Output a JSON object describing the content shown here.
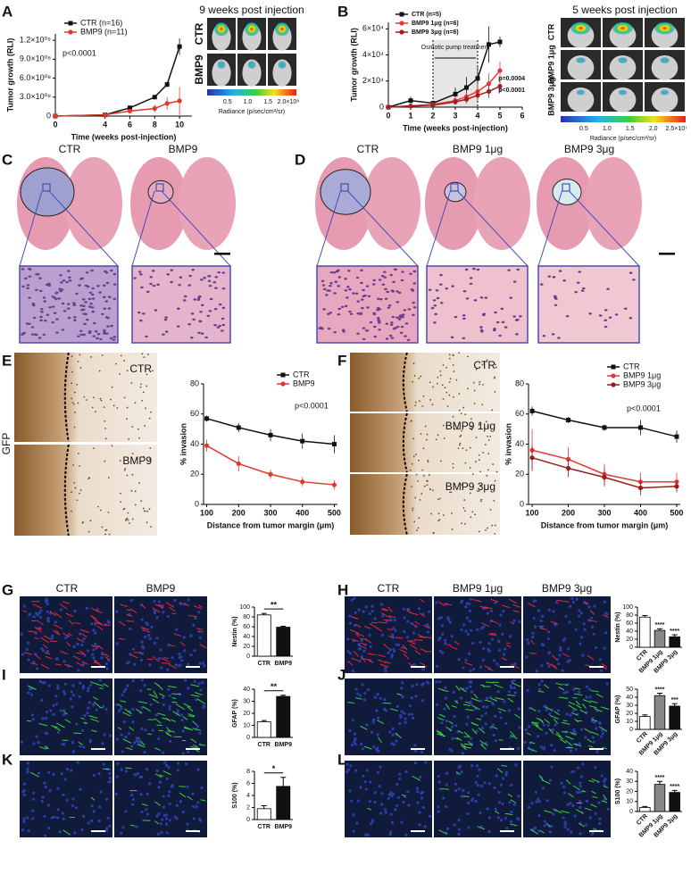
{
  "panel_letters": [
    "A",
    "B",
    "C",
    "D",
    "E",
    "F",
    "G",
    "H",
    "I",
    "J",
    "K",
    "L"
  ],
  "image_labels": {
    "a_title": "9 weeks post injection",
    "a_rows": [
      "CTR",
      "BMP9"
    ],
    "a_colorbar_ticks": [
      "0.5",
      "1.0",
      "1.5",
      "2.0×10⁸"
    ],
    "a_colorbar_label": "Radiance (p/sec/cm²/sr)",
    "b_title": "5 weeks post injection",
    "b_rows": [
      "CTR",
      "BMP9 1μg",
      "BMP9 3μg"
    ],
    "b_colorbar_ticks": [
      "0.5",
      "1.0",
      "1.5",
      "2.0",
      "2.5×10⁷"
    ],
    "b_colorbar_label": "Radiance (p/sec/cm²/sr)",
    "c_cols": [
      "CTR",
      "BMP9"
    ],
    "d_cols": [
      "CTR",
      "BMP9 1μg",
      "BMP9 3μg"
    ],
    "e_rows": [
      "CTR",
      "BMP9"
    ],
    "e_stain": "GFP",
    "f_rows": [
      "CTR",
      "BMP9 1μg",
      "BMP9 3μg"
    ],
    "g_cols": [
      "CTR",
      "BMP9"
    ],
    "h_cols": [
      "CTR",
      "BMP9 1μg",
      "BMP9 3μg"
    ],
    "stains": [
      "Nestin",
      "GFAP",
      "S100"
    ]
  },
  "chart_data": [
    {
      "type": "line",
      "xlabel": "Time (weeks post-injection)",
      "ylabel": "Tumor growth (RLI)",
      "x": [
        0,
        4,
        6,
        8,
        9,
        10
      ],
      "xlim": [
        0,
        11
      ],
      "xticks": [
        0,
        4,
        6,
        8,
        10
      ],
      "ylim": [
        0,
        1300000000
      ],
      "yticks": [
        0,
        {
          "value": 300000000,
          "label": "3.0×10⁰⁸"
        },
        {
          "value": 600000000,
          "label": "6.0×10⁰⁸"
        },
        {
          "value": 900000000,
          "label": "9.0×10⁰⁸"
        },
        {
          "value": 1200000000,
          "label": "1.2×10⁰⁹"
        }
      ],
      "series": [
        {
          "name": "CTR (n=16)",
          "color": "#111111",
          "values": [
            0,
            20000000,
            130000000,
            300000000,
            500000000,
            1100000000
          ],
          "errors": [
            0,
            10000000,
            15000000,
            30000000,
            40000000,
            130000000
          ]
        },
        {
          "name": "BMP9 (n=11)",
          "color": "#e0392b",
          "values": [
            0,
            20000000,
            80000000,
            120000000,
            200000000,
            240000000
          ],
          "errors": [
            0,
            10000000,
            30000000,
            60000000,
            100000000,
            220000000
          ]
        }
      ],
      "legend": "upper left",
      "annotations": [
        "p<0.0001"
      ]
    },
    {
      "type": "line",
      "xlabel": "Time (weeks post-injection)",
      "ylabel": "Tumor growth (RLI)",
      "x": [
        0,
        1,
        2,
        3,
        3.5,
        4,
        4.5,
        5
      ],
      "xlim": [
        0,
        6
      ],
      "xticks": [
        0,
        1,
        2,
        3,
        4,
        5,
        6
      ],
      "ylim": [
        0,
        65000
      ],
      "yticks": [
        0,
        {
          "value": 20000,
          "label": "2×10⁴"
        },
        {
          "value": 40000,
          "label": "4×10⁴"
        },
        {
          "value": 60000,
          "label": "6×10⁴"
        }
      ],
      "series": [
        {
          "name": "CTR (n=5)",
          "color": "#111111",
          "values": [
            0,
            5000,
            3000,
            10000,
            15000,
            22000,
            48000,
            50000
          ],
          "errors": [
            0,
            3000,
            2000,
            5000,
            8000,
            10000,
            14000,
            4000
          ]
        },
        {
          "name": "BMP9 1μg (n=6)",
          "color": "#e53935",
          "values": [
            0,
            1000,
            2000,
            5000,
            8000,
            12000,
            18000,
            28000
          ],
          "errors": [
            0,
            500,
            1000,
            3000,
            4000,
            6000,
            8000,
            7000
          ]
        },
        {
          "name": "BMP9 3μg (n=6)",
          "color": "#a51c1c",
          "values": [
            0,
            800,
            1500,
            4000,
            6000,
            9000,
            12000,
            16000
          ],
          "errors": [
            0,
            500,
            800,
            2000,
            3000,
            4000,
            5000,
            4000
          ]
        }
      ],
      "legend": "upper left",
      "treatment_span": [
        2,
        4
      ],
      "treatment_label": "Osmotic pump treatment",
      "annotations": [
        "p=0.0004",
        "p<0.0001"
      ]
    },
    {
      "type": "line",
      "xlabel": "Distance from tumor margin (μm)",
      "ylabel": "% invasion",
      "x": [
        100,
        200,
        300,
        400,
        500
      ],
      "xlim": [
        90,
        510
      ],
      "xticks": [
        100,
        200,
        300,
        400,
        500
      ],
      "ylim": [
        0,
        80
      ],
      "yticks": [
        0,
        20,
        40,
        60,
        80
      ],
      "series": [
        {
          "name": "CTR",
          "color": "#111111",
          "values": [
            57,
            51,
            46,
            42,
            40
          ],
          "errors": [
            2,
            3,
            4,
            5,
            6
          ]
        },
        {
          "name": "BMP9",
          "color": "#e0392b",
          "values": [
            39,
            27,
            20,
            15,
            13
          ],
          "errors": [
            4,
            5,
            3,
            3,
            3
          ]
        }
      ],
      "legend": "upper right",
      "annotations": [
        "p<0.0001"
      ]
    },
    {
      "type": "line",
      "xlabel": "Distance from tumor margin (μm)",
      "ylabel": "% invasion",
      "x": [
        100,
        200,
        300,
        400,
        500
      ],
      "xlim": [
        90,
        510
      ],
      "xticks": [
        100,
        200,
        300,
        400,
        500
      ],
      "ylim": [
        0,
        80
      ],
      "yticks": [
        0,
        20,
        40,
        60,
        80
      ],
      "series": [
        {
          "name": "CTR",
          "color": "#111111",
          "values": [
            62,
            56,
            51,
            51,
            45
          ],
          "errors": [
            3,
            2,
            2,
            5,
            4
          ]
        },
        {
          "name": "BMP9 1μg",
          "color": "#e53935",
          "values": [
            36,
            30,
            20,
            15,
            15
          ],
          "errors": [
            14,
            8,
            7,
            6,
            6
          ]
        },
        {
          "name": "BMP9 3μg",
          "color": "#9b1b1b",
          "values": [
            31,
            24,
            18,
            11,
            12
          ],
          "errors": [
            8,
            6,
            6,
            5,
            4
          ]
        }
      ],
      "legend": "upper right",
      "annotations": [
        "p<0.0001"
      ]
    },
    {
      "type": "bar",
      "ylabel": "Nestin (%)",
      "categories": [
        "CTR",
        "BMP9"
      ],
      "values": [
        84,
        59
      ],
      "errors": [
        3,
        2
      ],
      "colors": [
        "#ffffff",
        "#111111"
      ],
      "ylim": [
        0,
        100
      ],
      "yticks": [
        0,
        20,
        40,
        60,
        80,
        100
      ],
      "significance": [
        "**"
      ]
    },
    {
      "type": "bar",
      "ylabel": "GFAP (%)",
      "categories": [
        "CTR",
        "BMP9"
      ],
      "values": [
        13,
        34
      ],
      "errors": [
        1,
        1
      ],
      "colors": [
        "#ffffff",
        "#111111"
      ],
      "ylim": [
        0,
        40
      ],
      "yticks": [
        0,
        10,
        20,
        30,
        40
      ],
      "significance": [
        "**"
      ]
    },
    {
      "type": "bar",
      "ylabel": "S100 (%)",
      "categories": [
        "CTR",
        "BMP9"
      ],
      "values": [
        1.8,
        5.5
      ],
      "errors": [
        0.5,
        1.5
      ],
      "colors": [
        "#ffffff",
        "#111111"
      ],
      "ylim": [
        0,
        8
      ],
      "yticks": [
        0,
        2,
        4,
        6,
        8
      ],
      "significance": [
        "*"
      ]
    },
    {
      "type": "bar",
      "ylabel": "Nestin (%)",
      "categories": [
        "CTR",
        "BMP9 1μg",
        "BMP9 3μg"
      ],
      "values": [
        75,
        42,
        26
      ],
      "errors": [
        4,
        4,
        5
      ],
      "colors": [
        "#ffffff",
        "#888888",
        "#111111"
      ],
      "ylim": [
        0,
        100
      ],
      "yticks": [
        0,
        20,
        40,
        60,
        80,
        100
      ],
      "significance": [
        "****",
        "****"
      ]
    },
    {
      "type": "bar",
      "ylabel": "GFAP (%)",
      "categories": [
        "CTR",
        "BMP9 1μg",
        "BMP9 3μg"
      ],
      "values": [
        16,
        42,
        29
      ],
      "errors": [
        2,
        3,
        3
      ],
      "colors": [
        "#ffffff",
        "#888888",
        "#111111"
      ],
      "ylim": [
        0,
        50
      ],
      "yticks": [
        0,
        10,
        20,
        30,
        40,
        50
      ],
      "significance": [
        "****",
        "***"
      ]
    },
    {
      "type": "bar",
      "ylabel": "S100 (%)",
      "categories": [
        "CTR",
        "BMP9 1μg",
        "BMP9 3μg"
      ],
      "values": [
        4,
        27,
        19
      ],
      "errors": [
        1,
        3,
        2
      ],
      "colors": [
        "#ffffff",
        "#888888",
        "#111111"
      ],
      "ylim": [
        0,
        40
      ],
      "yticks": [
        0,
        10,
        20,
        30,
        40
      ],
      "significance": [
        "****",
        "****"
      ]
    }
  ]
}
